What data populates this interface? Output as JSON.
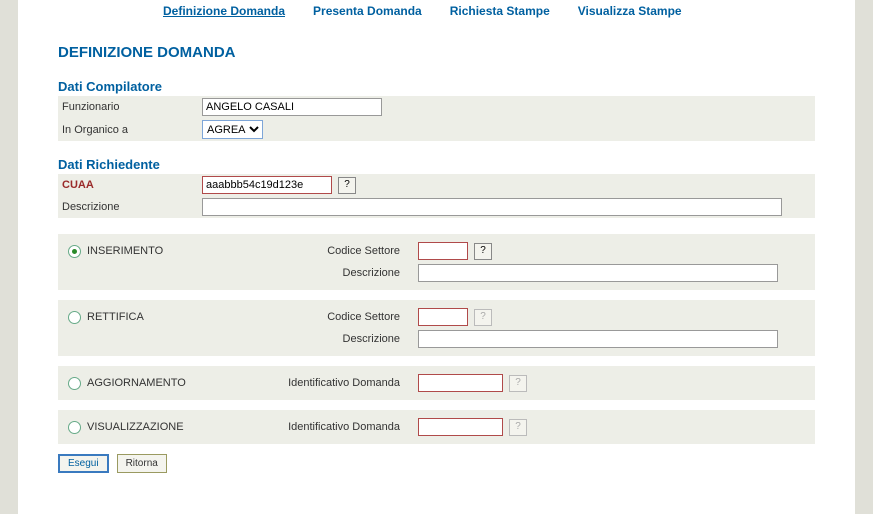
{
  "nav": {
    "definizione": "Definizione Domanda",
    "presenta": "Presenta Domanda",
    "richiesta": "Richiesta Stampe",
    "visualizza": "Visualizza Stampe"
  },
  "title": "DEFINIZIONE DOMANDA",
  "compilatore": {
    "heading": "Dati Compilatore",
    "funzionario_label": "Funzionario",
    "funzionario_value": "ANGELO CASALI",
    "organico_label": "In Organico a",
    "organico_value": "AGREA"
  },
  "richiedente": {
    "heading": "Dati Richiedente",
    "cuaa_label": "CUAA",
    "cuaa_value": "aaabbb54c19d123e",
    "descrizione_label": "Descrizione",
    "descrizione_value": ""
  },
  "options": {
    "inserimento": {
      "label": "INSERIMENTO",
      "codice_label": "Codice Settore",
      "codice_value": "",
      "desc_label": "Descrizione",
      "desc_value": ""
    },
    "rettifica": {
      "label": "RETTIFICA",
      "codice_label": "Codice Settore",
      "codice_value": "",
      "desc_label": "Descrizione",
      "desc_value": ""
    },
    "aggiornamento": {
      "label": "AGGIORNAMENTO",
      "id_label": "Identificativo Domanda",
      "id_value": ""
    },
    "visualizzazione": {
      "label": "VISUALIZZAZIONE",
      "id_label": "Identificativo Domanda",
      "id_value": ""
    }
  },
  "buttons": {
    "esegui": "Esegui",
    "ritorna": "Ritorna"
  },
  "help": "?"
}
